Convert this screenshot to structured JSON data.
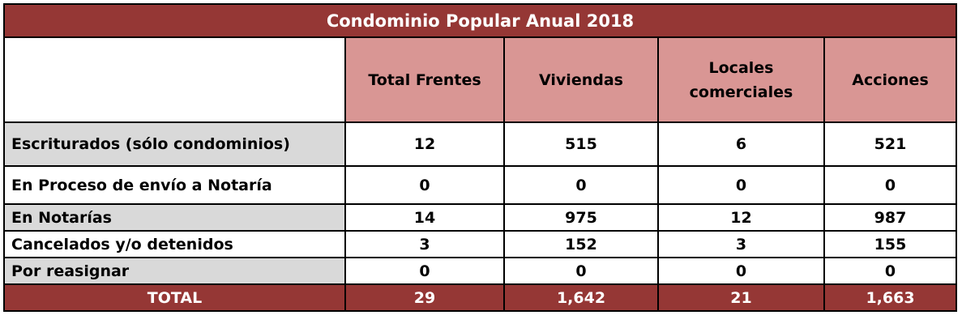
{
  "title": "Condominio Popular Anual 2018",
  "columns": [
    "Total Frentes",
    "Viviendas",
    "Locales comerciales",
    "Acciones"
  ],
  "rows": [
    {
      "label": "Escriturados (sólo condominios)",
      "values": [
        "12",
        "515",
        "6",
        "521"
      ]
    },
    {
      "label": "En Proceso de envío a Notaría",
      "values": [
        "0",
        "0",
        "0",
        "0"
      ]
    },
    {
      "label": "En Notarías",
      "values": [
        "14",
        "975",
        "12",
        "987"
      ]
    },
    {
      "label": "Cancelados y/o detenidos",
      "values": [
        "3",
        "152",
        "3",
        "155"
      ]
    },
    {
      "label": "Por reasignar",
      "values": [
        "0",
        "0",
        "0",
        "0"
      ]
    }
  ],
  "total": {
    "label": "TOTAL",
    "values": [
      "29",
      "1,642",
      "21",
      "1,663"
    ]
  },
  "colors": {
    "title_bg": "#953735",
    "header_bg": "#d99694",
    "label_grey": "#d9d9d9",
    "total_bg": "#953735"
  }
}
